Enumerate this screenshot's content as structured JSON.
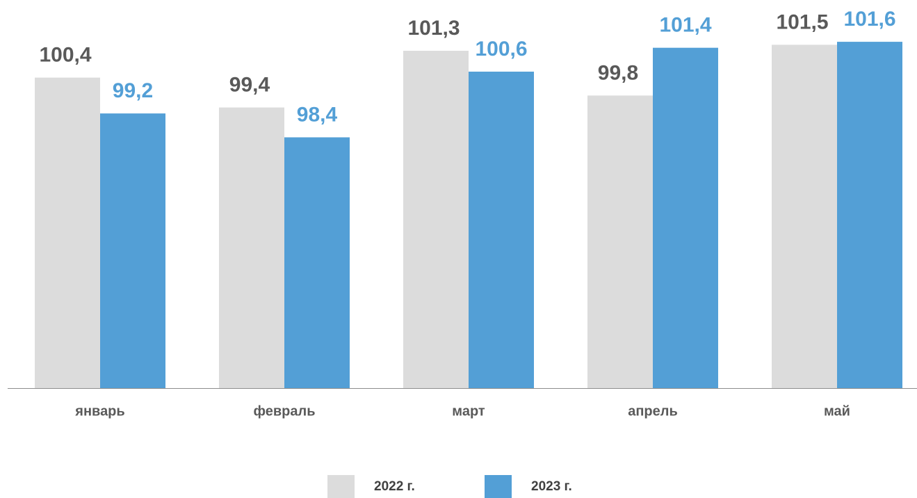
{
  "chart_data": {
    "type": "bar",
    "categories": [
      "январь",
      "февраль",
      "март",
      "апрель",
      "май"
    ],
    "series": [
      {
        "name": "2022 г.",
        "color": "#dcdcdc",
        "label_color": "#595959",
        "values": [
          100.4,
          99.4,
          101.3,
          99.8,
          101.5
        ],
        "value_labels": [
          "100,4",
          "99,4",
          "101,3",
          "99,8",
          "101,5"
        ]
      },
      {
        "name": "2023 г.",
        "color": "#539fd6",
        "label_color": "#539fd6",
        "values": [
          99.2,
          98.4,
          100.6,
          101.4,
          101.6
        ],
        "value_labels": [
          "99,2",
          "98,4",
          "100,6",
          "101,4",
          "101,6"
        ]
      }
    ],
    "ylim": [
      90,
      103
    ],
    "grid": false
  }
}
